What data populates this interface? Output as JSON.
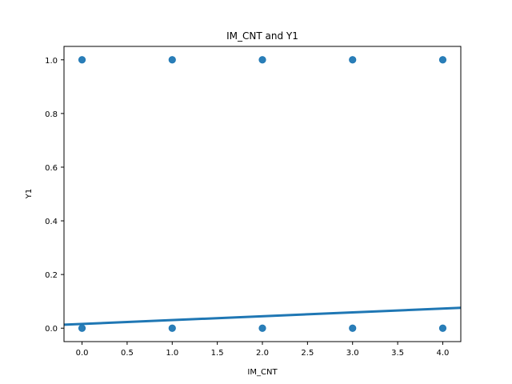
{
  "chart_data": {
    "type": "scatter",
    "title": "IM_CNT and Y1",
    "xlabel": "IM_CNT",
    "ylabel": "Y1",
    "xlim": [
      -0.2,
      4.2
    ],
    "ylim": [
      -0.05,
      1.05
    ],
    "xticks": [
      "0.0",
      "0.5",
      "1.0",
      "1.5",
      "2.0",
      "2.5",
      "3.0",
      "3.5",
      "4.0"
    ],
    "yticks": [
      "0.0",
      "0.2",
      "0.4",
      "0.6",
      "0.8",
      "1.0"
    ],
    "grid": false,
    "color": "#1f77b4",
    "points": [
      {
        "x": 0,
        "y": 1
      },
      {
        "x": 1,
        "y": 1
      },
      {
        "x": 2,
        "y": 1
      },
      {
        "x": 3,
        "y": 1
      },
      {
        "x": 4,
        "y": 1
      },
      {
        "x": 0,
        "y": 0
      },
      {
        "x": 1,
        "y": 0
      },
      {
        "x": 2,
        "y": 0
      },
      {
        "x": 3,
        "y": 0
      },
      {
        "x": 4,
        "y": 0
      }
    ],
    "fit_line": {
      "x": [
        -0.2,
        4.2
      ],
      "y": [
        0.013,
        0.076
      ]
    }
  }
}
